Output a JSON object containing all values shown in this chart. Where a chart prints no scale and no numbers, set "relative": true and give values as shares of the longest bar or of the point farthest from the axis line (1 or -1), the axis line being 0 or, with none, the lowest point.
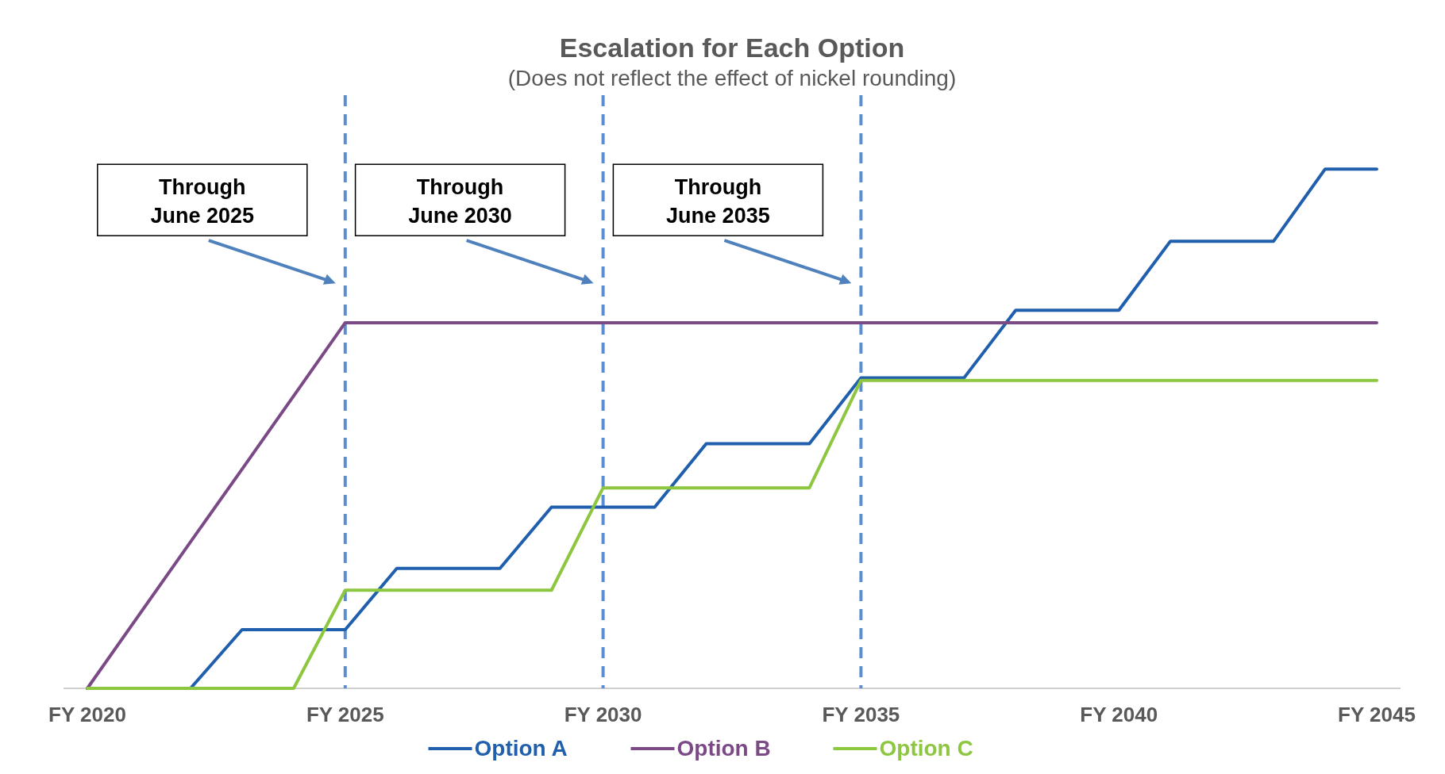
{
  "chart_data": {
    "type": "line",
    "title": "Escalation for Each Option",
    "subtitle": "(Does not reflect the effect of nickel rounding)",
    "relative": true,
    "categories": [
      "FY 2020",
      null,
      null,
      null,
      null,
      "FY 2025",
      null,
      null,
      null,
      null,
      "FY 2030",
      null,
      null,
      null,
      null,
      "FY 2035",
      null,
      null,
      null,
      null,
      "FY 2040",
      null,
      null,
      null,
      null,
      "FY 2045"
    ],
    "legend": "bottom",
    "marker": "none",
    "line_style": "solid",
    "series": [
      {
        "name": "Option A",
        "color": "#1f5fad",
        "values": [
          0,
          0,
          0,
          0.113,
          0.113,
          0.113,
          0.231,
          0.231,
          0.231,
          0.349,
          0.349,
          0.349,
          0.471,
          0.471,
          0.471,
          0.598,
          0.598,
          0.598,
          0.728,
          0.728,
          0.728,
          0.861,
          0.861,
          0.861,
          1,
          1
        ]
      },
      {
        "name": "Option B",
        "color": "#7b4a86",
        "values": [
          0,
          0.141,
          0.282,
          0.422,
          0.563,
          0.704,
          0.704,
          0.704,
          0.704,
          0.704,
          0.704,
          0.704,
          0.704,
          0.704,
          0.704,
          0.704,
          0.704,
          0.704,
          0.704,
          0.704,
          0.704,
          0.704,
          0.704,
          0.704,
          0.704,
          0.704
        ]
      },
      {
        "name": "Option C",
        "color": "#8dc63f",
        "values": [
          0,
          0,
          0,
          0,
          0,
          0.189,
          0.189,
          0.189,
          0.189,
          0.189,
          0.386,
          0.386,
          0.386,
          0.386,
          0.386,
          0.593,
          0.593,
          0.593,
          0.593,
          0.593,
          0.593,
          0.593,
          0.593,
          0.593,
          0.593,
          0.593
        ]
      }
    ],
    "ref_lines": [
      {
        "axis": "x",
        "value": "FY 2025",
        "color": "#5b8ed0",
        "line_style": "dashed"
      },
      {
        "axis": "x",
        "value": "FY 2030",
        "color": "#5b8ed0",
        "line_style": "dashed"
      },
      {
        "axis": "x",
        "value": "FY 2035",
        "color": "#5b8ed0",
        "line_style": "dashed"
      }
    ],
    "annotations": [
      "Through June 2025",
      "Through June 2030",
      "Through June 2035"
    ]
  }
}
